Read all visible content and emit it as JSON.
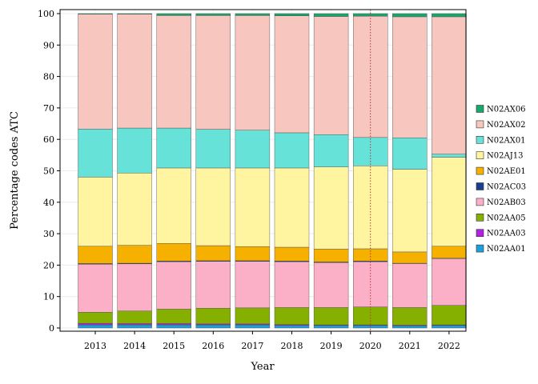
{
  "chart_data": {
    "type": "bar",
    "stacked": true,
    "xlabel": "Year",
    "ylabel": "Percentage codes ATC",
    "ylim": [
      0,
      100
    ],
    "yticks": [
      0,
      10,
      20,
      30,
      40,
      50,
      60,
      70,
      80,
      90,
      100
    ],
    "categories": [
      "2013",
      "2014",
      "2015",
      "2016",
      "2017",
      "2018",
      "2019",
      "2020",
      "2021",
      "2022"
    ],
    "reference_line": {
      "x": "2020",
      "style": "dotted",
      "color": "#b03a3a"
    },
    "legend_position": "right",
    "legend_order": [
      "N02AX06",
      "N02AX02",
      "N02AX01",
      "N02AJ13",
      "N02AE01",
      "N02AC03",
      "N02AB03",
      "N02AA05",
      "N02AA03",
      "N02AA01"
    ],
    "series": [
      {
        "name": "N02AA01",
        "color": "#1f9ed8",
        "values": [
          1.0,
          1.0,
          1.0,
          1.0,
          1.0,
          0.8,
          0.8,
          0.8,
          0.7,
          0.8
        ]
      },
      {
        "name": "N02AA03",
        "color": "#b222e0",
        "values": [
          0.5,
          0.4,
          0.4,
          0.3,
          0.3,
          0.3,
          0.2,
          0.2,
          0.2,
          0.2
        ]
      },
      {
        "name": "N02AA05",
        "color": "#86b000",
        "values": [
          3.5,
          4.0,
          4.6,
          5.0,
          5.1,
          5.4,
          5.5,
          5.7,
          5.6,
          6.2
        ]
      },
      {
        "name": "N02AB03",
        "color": "#fbb0c8",
        "values": [
          15.3,
          15.0,
          15.1,
          14.9,
          14.8,
          14.6,
          14.3,
          14.4,
          14.0,
          14.9
        ]
      },
      {
        "name": "N02AC03",
        "color": "#1b3f8f",
        "values": [
          0.2,
          0.2,
          0.2,
          0.2,
          0.2,
          0.2,
          0.2,
          0.2,
          0.1,
          0.1
        ]
      },
      {
        "name": "N02AE01",
        "color": "#f5b000",
        "values": [
          5.5,
          5.7,
          5.6,
          4.8,
          4.5,
          4.4,
          4.1,
          3.9,
          3.6,
          3.8
        ]
      },
      {
        "name": "N02AJ13",
        "color": "#fff5a0",
        "values": [
          22.0,
          23.0,
          24.0,
          24.7,
          25.0,
          25.2,
          26.1,
          26.4,
          26.3,
          28.3
        ]
      },
      {
        "name": "N02AX01",
        "color": "#66e2d8",
        "values": [
          15.3,
          14.3,
          12.7,
          12.3,
          12.0,
          11.2,
          10.3,
          9.0,
          10.0,
          1.0
        ]
      },
      {
        "name": "N02AX02",
        "color": "#f7c6be",
        "values": [
          36.5,
          36.2,
          35.8,
          36.2,
          36.5,
          37.2,
          37.6,
          38.6,
          38.5,
          43.7
        ]
      },
      {
        "name": "N02AX06",
        "color": "#17a86b",
        "values": [
          0.2,
          0.2,
          0.6,
          0.6,
          0.6,
          0.7,
          0.9,
          0.8,
          1.0,
          1.0
        ]
      }
    ]
  }
}
